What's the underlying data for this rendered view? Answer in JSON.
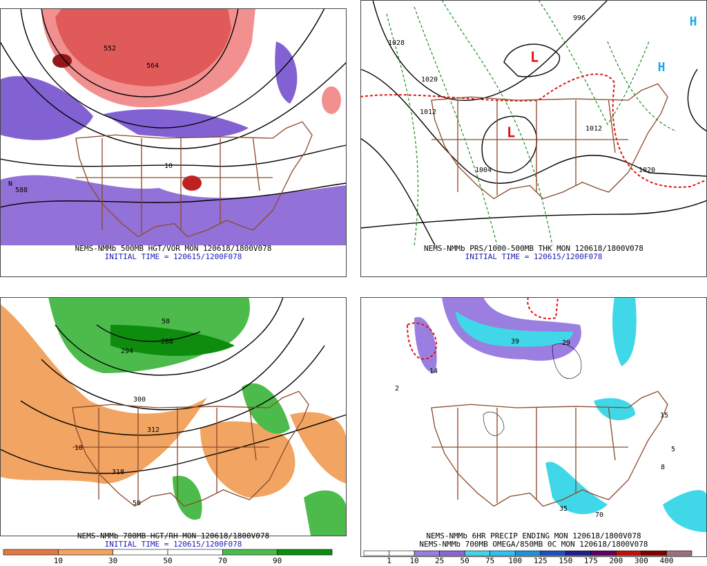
{
  "panels": [
    {
      "caption": "NEMS-NMMb 500MB HGT/VOR MON 120618/1800V078",
      "initial_time": "INITIAL TIME = 120615/1200F078",
      "labels": [
        "564",
        "552",
        "588",
        "10",
        "N"
      ]
    },
    {
      "caption": "NEMS-NMMb PRS/1000-500MB THK MON 120618/1800V078",
      "initial_time": "INITIAL TIME = 120615/1200F078",
      "labels": [
        "1028",
        "1020",
        "1012",
        "1004",
        "996",
        "L",
        "L",
        "H",
        "H",
        "1020",
        "1012"
      ]
    },
    {
      "caption": "NEMS-NMMb 700MB HGT/RH MON 120618/1800V078",
      "initial_time": "INITIAL TIME = 120615/1200F078",
      "labels": [
        "300",
        "312",
        "318",
        "288",
        "294",
        "50",
        "50",
        "10"
      ]
    },
    {
      "caption": "NEMS-NMMb 6HR PRECIP ENDING MON 120618/1800V078",
      "initial_time": "NEMS-NMMb 700MB OMEGA/850MB 0C MON 120618/1800V078",
      "labels": [
        "39",
        "29",
        "14",
        "15",
        "5",
        "8",
        "35",
        "70",
        "2"
      ]
    }
  ],
  "colorbars": [
    {
      "labels": [
        "10",
        "30",
        "50",
        "70",
        "90"
      ],
      "colors": [
        "#e07a45",
        "#f2a462",
        "#ffffff",
        "#ffffff",
        "#4cbb4c",
        "#0e8c0e"
      ]
    },
    {
      "labels": [
        "1",
        "10",
        "25",
        "50",
        "75",
        "100",
        "125",
        "150",
        "175",
        "200",
        "300",
        "400"
      ],
      "colors": [
        "#ffffff",
        "#ffffff",
        "#9a7fe0",
        "#8a66d6",
        "#40d8e8",
        "#2cc4f0",
        "#2090e0",
        "#1f4fc0",
        "#202090",
        "#600060",
        "#c01010",
        "#800000",
        "#a07080"
      ]
    }
  ]
}
